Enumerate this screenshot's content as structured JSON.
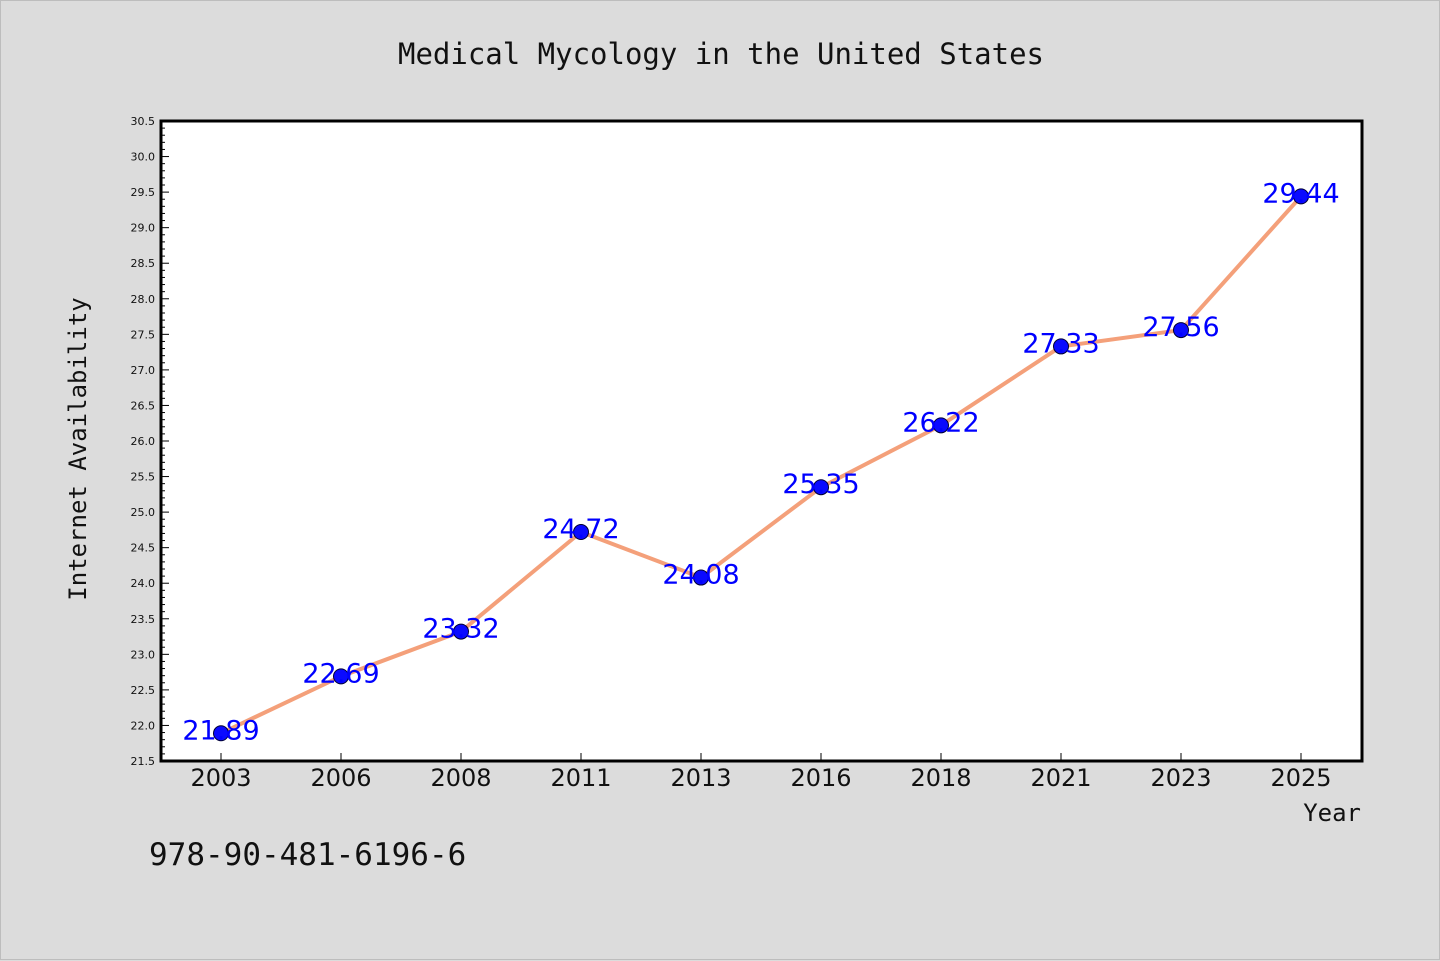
{
  "colors": {
    "background": "#dcdcdc",
    "plot_background": "#ffffff",
    "line": "#f4a07a",
    "marker": "#0a0aff",
    "data_label": "#0000ff"
  },
  "footer_note": "978-90-481-6196-6",
  "chart_data": {
    "type": "line",
    "title": "Medical Mycology in the United States",
    "xlabel": "Year",
    "ylabel": "Internet Availability",
    "categories": [
      "2003",
      "2006",
      "2008",
      "2011",
      "2013",
      "2016",
      "2018",
      "2021",
      "2023",
      "2025"
    ],
    "series": [
      {
        "values": [
          21.89,
          22.69,
          23.32,
          24.72,
          24.08,
          25.35,
          26.22,
          27.33,
          27.56,
          29.44
        ]
      }
    ],
    "data_labels": [
      "21.89",
      "22.69",
      "23.32",
      "24.72",
      "24.08",
      "25.35",
      "26.22",
      "27.33",
      "27.56",
      "29.44"
    ],
    "ylim": [
      21.5,
      30.5
    ],
    "yticks": [
      "21.5",
      "22.0",
      "22.5",
      "23.0",
      "23.5",
      "24.0",
      "24.5",
      "25.0",
      "25.5",
      "26.0",
      "26.5",
      "27.0",
      "27.5",
      "28.0",
      "28.5",
      "29.0",
      "29.5",
      "30.0",
      "30.5"
    ],
    "grid": false,
    "legend": "none",
    "marker": "circle"
  }
}
